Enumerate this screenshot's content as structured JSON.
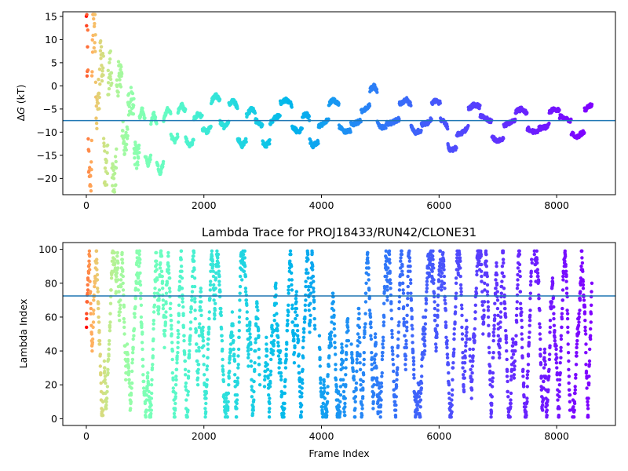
{
  "chart_data": [
    {
      "type": "scatter",
      "title": "",
      "xlabel": "",
      "ylabel": "ΔG (kT)",
      "ylabel_symbol": "Δ",
      "ylabel_var": "G",
      "ylabel_unit": " (kT)",
      "xlim": [
        -400,
        9000
      ],
      "ylim": [
        -23.5,
        16
      ],
      "xticks": [
        0,
        2000,
        4000,
        6000,
        8000
      ],
      "yticks": [
        -20,
        -15,
        -10,
        -5,
        0,
        5,
        10,
        15
      ],
      "hline": -7.5,
      "hline_color": "#1f77b4",
      "colormap": "rainbow (reversed by frame: red at start, purple at end)",
      "n_frames": 8600,
      "trace_anchors": [
        [
          0,
          10
        ],
        [
          60,
          -22
        ],
        [
          130,
          14
        ],
        [
          190,
          -5
        ],
        [
          260,
          6
        ],
        [
          330,
          -20
        ],
        [
          400,
          5
        ],
        [
          470,
          -21
        ],
        [
          560,
          3
        ],
        [
          650,
          -12
        ],
        [
          760,
          -3
        ],
        [
          860,
          -16
        ],
        [
          950,
          -5
        ],
        [
          1050,
          -17
        ],
        [
          1150,
          -6
        ],
        [
          1250,
          -19
        ],
        [
          1380,
          -5
        ],
        [
          1500,
          -12
        ],
        [
          1620,
          -4
        ],
        [
          1760,
          -13
        ],
        [
          1900,
          -6
        ],
        [
          2050,
          -10
        ],
        [
          2200,
          -2
        ],
        [
          2350,
          -9
        ],
        [
          2500,
          -3
        ],
        [
          2650,
          -13
        ],
        [
          2800,
          -5
        ],
        [
          2950,
          -8
        ],
        [
          3050,
          -13
        ],
        [
          3200,
          -7
        ],
        [
          3400,
          -3
        ],
        [
          3600,
          -10
        ],
        [
          3750,
          -6
        ],
        [
          3850,
          -13
        ],
        [
          4050,
          -8
        ],
        [
          4200,
          -3
        ],
        [
          4400,
          -10
        ],
        [
          4600,
          -8
        ],
        [
          4750,
          -5
        ],
        [
          4900,
          0
        ],
        [
          5000,
          -9
        ],
        [
          5200,
          -8
        ],
        [
          5450,
          -3
        ],
        [
          5600,
          -10
        ],
        [
          5800,
          -8
        ],
        [
          5950,
          -3
        ],
        [
          6100,
          -8
        ],
        [
          6200,
          -14
        ],
        [
          6400,
          -10
        ],
        [
          6600,
          -4
        ],
        [
          6800,
          -7
        ],
        [
          7000,
          -12
        ],
        [
          7200,
          -8
        ],
        [
          7400,
          -5
        ],
        [
          7600,
          -10
        ],
        [
          7800,
          -9
        ],
        [
          7950,
          -5
        ],
        [
          8150,
          -7
        ],
        [
          8350,
          -11
        ],
        [
          8600,
          -4
        ]
      ]
    },
    {
      "type": "scatter",
      "title": "Lambda Trace for PROJ18433/RUN42/CLONE31",
      "xlabel": "Frame Index",
      "ylabel": "Lambda Index",
      "xlim": [
        -400,
        9000
      ],
      "ylim": [
        -4,
        104
      ],
      "xticks": [
        0,
        2000,
        4000,
        6000,
        8000
      ],
      "yticks": [
        0,
        20,
        40,
        60,
        80,
        100
      ],
      "lambda_range": [
        0,
        99
      ],
      "hline": 72.5,
      "hline_color": "#1f77b4",
      "colormap": "rainbow (reversed by frame: red at start, purple at end)",
      "n_frames": 8600,
      "gap_bands": [
        [
          2950,
          3030
        ],
        [
          3890,
          3960
        ],
        [
          4460,
          4510
        ],
        [
          6480,
          6520
        ],
        [
          7580,
          7620
        ],
        [
          8230,
          8270
        ]
      ]
    }
  ]
}
